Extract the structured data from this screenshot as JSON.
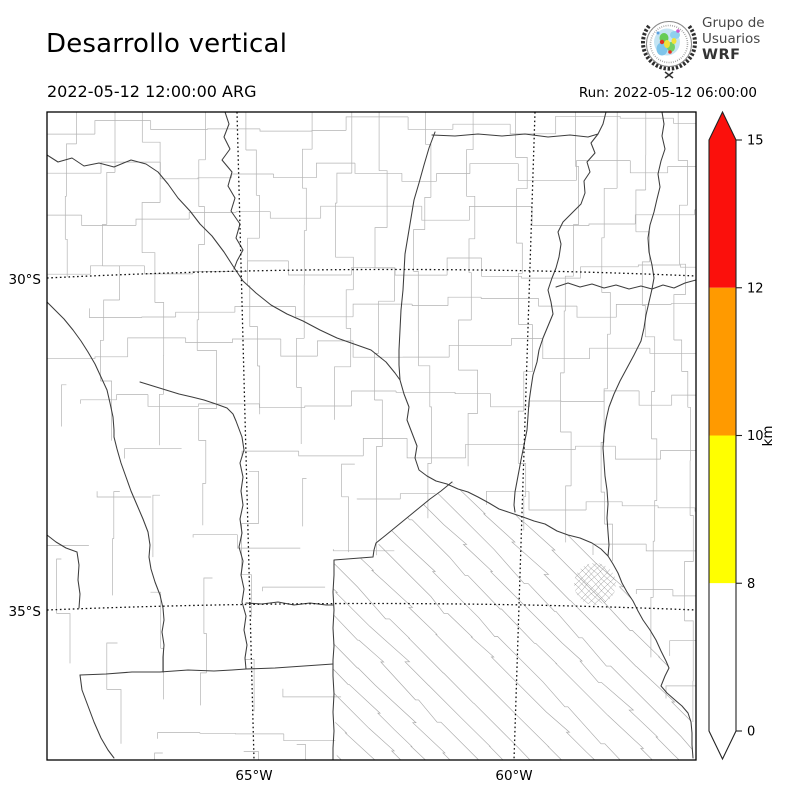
{
  "header": {
    "title": "Desarrollo vertical",
    "valid_time": "2022-05-12 12:00:00 ARG",
    "run_label": "Run: 2022-05-12 06:00:00"
  },
  "logo": {
    "line1": "Grupo de",
    "line2": "Usuarios",
    "line3": "WRF"
  },
  "map": {
    "lat_labels": [
      "30°S",
      "35°S"
    ],
    "lon_labels": [
      "65°W",
      "60°W"
    ]
  },
  "colorbar": {
    "unit": "km",
    "tick_labels": [
      "15",
      "12",
      "10",
      "8",
      "0"
    ],
    "tick_values": [
      15,
      12,
      10,
      8,
      0
    ],
    "segment_colors_top_to_bottom": [
      "#fb100c",
      "#ff9a00",
      "#ffff00",
      "#ffffff"
    ],
    "over_arrow_color": "#fb100c",
    "under_arrow_color": "#ffffff"
  }
}
